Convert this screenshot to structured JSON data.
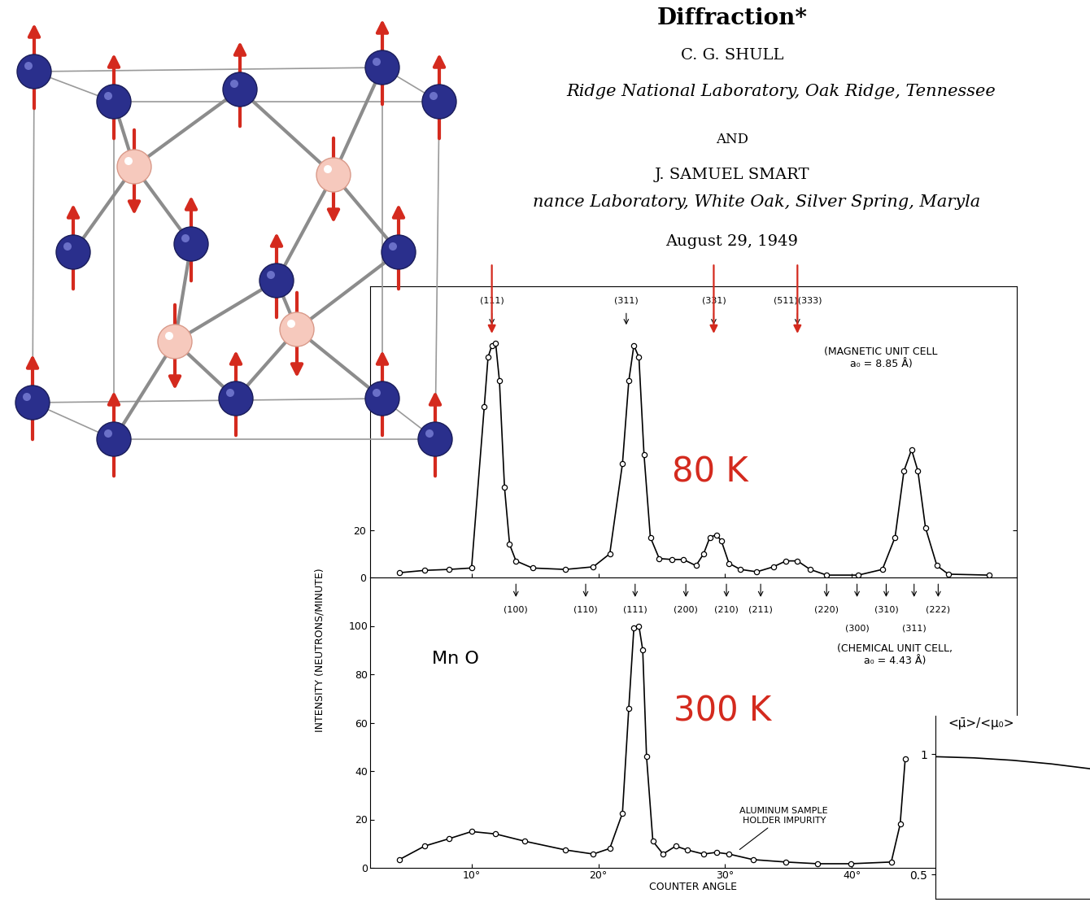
{
  "header": {
    "title": "Diffraction*",
    "authors": [
      {
        "name": "C. G. SHULL",
        "affiliation": "Ridge National Laboratory, Oak Ridge, Tennessee"
      },
      {
        "name": "J. SAMUEL SMART",
        "affiliation": "nance Laboratory, White Oak, Silver Spring, Maryla"
      }
    ],
    "conjunction": "AND",
    "date": "August 29, 1949"
  },
  "chart_data": [
    {
      "type": "line",
      "temperature": "80 K",
      "x": [
        4.3,
        6.3,
        8.2,
        10.0,
        11.0,
        11.3,
        11.6,
        11.9,
        12.2,
        12.6,
        13.0,
        13.5,
        14.8,
        17.4,
        19.6,
        20.9,
        21.9,
        22.4,
        22.8,
        23.2,
        23.6,
        24.1,
        24.8,
        25.8,
        26.7,
        27.7,
        28.3,
        28.8,
        29.3,
        29.7,
        30.3,
        31.2,
        32.5,
        33.8,
        34.8,
        35.7,
        36.7,
        38.0,
        40.5,
        42.4,
        43.4,
        44.1,
        44.7,
        45.2,
        45.8,
        46.7,
        47.6,
        50.8
      ],
      "values": [
        2,
        3,
        3.4,
        4,
        72,
        93,
        98,
        99,
        83,
        38,
        14,
        7,
        4,
        3.4,
        4.5,
        10,
        48,
        83,
        98,
        93,
        52,
        17,
        8,
        7.6,
        7.6,
        5,
        10,
        17,
        18,
        15.5,
        6,
        3.4,
        2.4,
        4.5,
        7,
        7,
        3.4,
        1,
        1,
        3.4,
        17,
        45,
        54,
        45,
        21,
        5,
        1.4,
        1
      ],
      "color": "#000000",
      "marker": "o",
      "line_style": "solid",
      "xlim": [
        2,
        53
      ],
      "ylim": [
        0,
        123
      ],
      "xticks": [
        10,
        20,
        30,
        40
      ],
      "yticks": [
        0,
        20
      ],
      "tick_labels": "y",
      "reflections": {
        "cell_label": "(MAGNETIC UNIT CELL\na₀ = 8.85 Å)",
        "peaks": [
          {
            "label": "(111)",
            "x": 11.6,
            "marked": true
          },
          {
            "label": "(311)",
            "x": 22.2,
            "marked": false
          },
          {
            "label": "(331)",
            "x": 29.1,
            "marked": true
          },
          {
            "label": "(511)(333)",
            "x": 35.7,
            "marked": true
          }
        ]
      }
    },
    {
      "type": "line",
      "temperature": "300 K",
      "sample_label": "Mn O",
      "x_label": "COUNTER ANGLE",
      "y_label": "INTENSITY (NEUTRONS/MINUTE)",
      "x": [
        4.3,
        6.3,
        8.2,
        10.0,
        11.9,
        14.2,
        17.4,
        19.6,
        20.9,
        21.9,
        22.4,
        22.8,
        23.2,
        23.5,
        23.8,
        24.3,
        25.1,
        26.1,
        27.0,
        28.3,
        29.3,
        30.3,
        32.2,
        34.8,
        37.3,
        39.9,
        43.1,
        43.8,
        44.2
      ],
      "values": [
        3.4,
        9,
        12,
        15,
        14,
        11,
        7.4,
        5.7,
        8,
        22.6,
        66,
        99,
        100,
        90,
        46,
        11,
        5.7,
        9,
        7.4,
        5.7,
        6.4,
        5.7,
        3.4,
        2.4,
        1.7,
        1.7,
        2.4,
        18,
        45
      ],
      "color": "#000000",
      "marker": "o",
      "line_style": "solid",
      "xlim": [
        2,
        53
      ],
      "ylim": [
        0,
        120
      ],
      "xticks": [
        {
          "value": 10,
          "label": "10°"
        },
        {
          "value": 20,
          "label": "20°"
        },
        {
          "value": 30,
          "label": "30°"
        },
        {
          "value": 40,
          "label": "40°"
        }
      ],
      "yticks": [
        0,
        20,
        40,
        60,
        80,
        100
      ],
      "impurity_note": {
        "text": "ALUMINUM SAMPLE\nHOLDER IMPURITY",
        "x": 31.0,
        "y": 7
      },
      "reflections": {
        "cell_label": "(CHEMICAL UNIT CELL,\na₀ = 4.43 Å)",
        "peaks": [
          {
            "label": "(100)",
            "x": 13.5
          },
          {
            "label": "(110)",
            "x": 19.0
          },
          {
            "label": "(111)",
            "x": 22.9
          },
          {
            "label": "(200)",
            "x": 26.9
          },
          {
            "label": "(210)",
            "x": 30.1
          },
          {
            "label": "(211)",
            "x": 32.8
          },
          {
            "label": "(220)",
            "x": 38.0
          },
          {
            "label": "(300)",
            "x": 40.4
          },
          {
            "label": "(310)",
            "x": 42.7
          },
          {
            "label": "(311)",
            "x": 44.9
          },
          {
            "label": "(222)",
            "x": 46.8
          }
        ]
      }
    },
    {
      "type": "line",
      "y_label": "<μ̄>/<μ₀>",
      "x": [
        0,
        0.25,
        0.5,
        0.75,
        1.0
      ],
      "values": [
        0.99,
        0.985,
        0.975,
        0.96,
        0.94
      ],
      "color": "#000000",
      "line_style": "solid",
      "xlim": [
        0,
        1
      ],
      "ylim": [
        0.4,
        1.16
      ],
      "yticks": [
        0.5,
        1
      ],
      "tick_labels": "y"
    }
  ]
}
